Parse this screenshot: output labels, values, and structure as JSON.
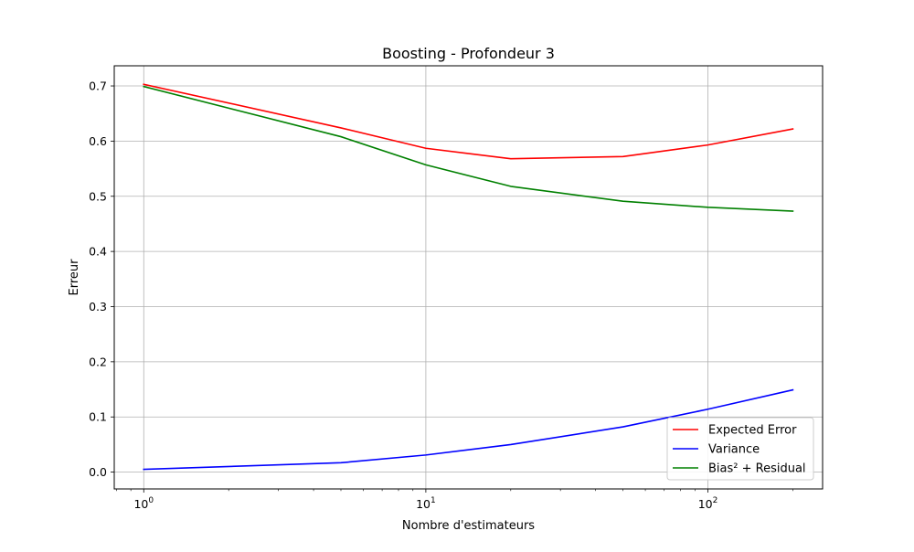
{
  "chart_data": {
    "type": "line",
    "title": "Boosting - Profondeur 3",
    "xlabel": "Nombre d'estimateurs",
    "ylabel": "Erreur",
    "x_scale": "log",
    "xlim": [
      0.786,
      255
    ],
    "ylim": [
      -0.0305,
      0.7365
    ],
    "grid": true,
    "legend_position": "lower-right",
    "x_ticks": [
      {
        "value": 1,
        "base": "10",
        "exp": "0"
      },
      {
        "value": 10,
        "base": "10",
        "exp": "1"
      },
      {
        "value": 100,
        "base": "10",
        "exp": "2"
      }
    ],
    "y_ticks": [
      {
        "value": 0.0,
        "label": "0.0"
      },
      {
        "value": 0.1,
        "label": "0.1"
      },
      {
        "value": 0.2,
        "label": "0.2"
      },
      {
        "value": 0.3,
        "label": "0.3"
      },
      {
        "value": 0.4,
        "label": "0.4"
      },
      {
        "value": 0.5,
        "label": "0.5"
      },
      {
        "value": 0.6,
        "label": "0.6"
      },
      {
        "value": 0.7,
        "label": "0.7"
      }
    ],
    "x": [
      1,
      5,
      10,
      20,
      50,
      100,
      200
    ],
    "series": [
      {
        "name": "Expected Error",
        "color": "#ff0000",
        "values": [
          0.703,
          0.624,
          0.587,
          0.568,
          0.572,
          0.593,
          0.622
        ]
      },
      {
        "name": "Variance",
        "color": "#0000ff",
        "values": [
          0.005,
          0.017,
          0.031,
          0.05,
          0.082,
          0.114,
          0.149
        ]
      },
      {
        "name": "Bias² + Residual",
        "color": "#008000",
        "values": [
          0.699,
          0.608,
          0.557,
          0.518,
          0.491,
          0.48,
          0.473
        ]
      }
    ]
  }
}
